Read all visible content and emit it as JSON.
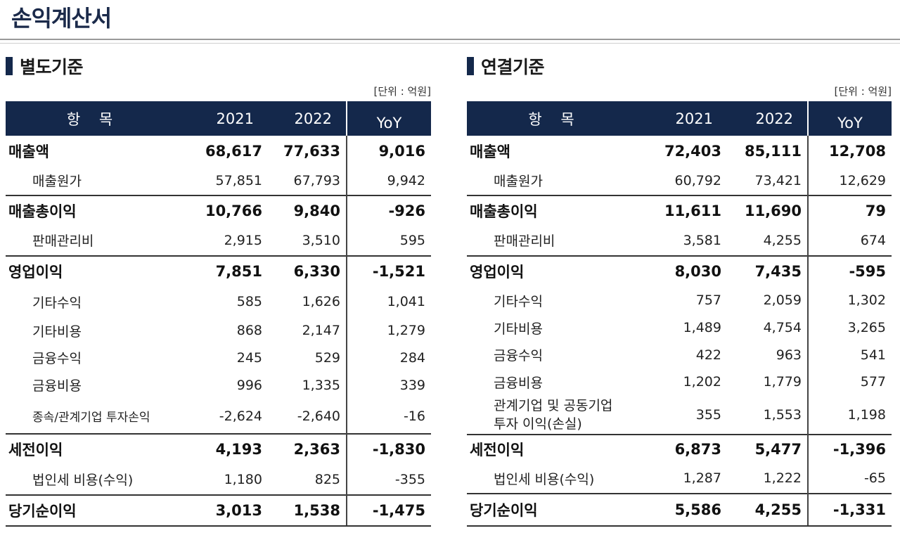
{
  "page_title": "손익계산서",
  "header": {
    "item": "항 목",
    "y2021": "2021",
    "y2022": "2022",
    "yoy": "YoY"
  },
  "standalone": {
    "title": "별도기준",
    "unit": "[단위 : 억원]",
    "rows": [
      {
        "label": "매출액",
        "v2021": "68,617",
        "v2022": "77,633",
        "yoy": "9,016"
      },
      {
        "label": "매출원가",
        "v2021": "57,851",
        "v2022": "67,793",
        "yoy": "9,942"
      },
      {
        "label": "매출총이익",
        "v2021": "10,766",
        "v2022": "9,840",
        "yoy": "-926"
      },
      {
        "label": "판매관리비",
        "v2021": "2,915",
        "v2022": "3,510",
        "yoy": "595"
      },
      {
        "label": "영업이익",
        "v2021": "7,851",
        "v2022": "6,330",
        "yoy": "-1,521"
      },
      {
        "label": "기타수익",
        "v2021": "585",
        "v2022": "1,626",
        "yoy": "1,041"
      },
      {
        "label": "기타비용",
        "v2021": "868",
        "v2022": "2,147",
        "yoy": "1,279"
      },
      {
        "label": "금융수익",
        "v2021": "245",
        "v2022": "529",
        "yoy": "284"
      },
      {
        "label": "금융비용",
        "v2021": "996",
        "v2022": "1,335",
        "yoy": "339"
      },
      {
        "label": "종속/관계기업 투자손익",
        "v2021": "-2,624",
        "v2022": "-2,640",
        "yoy": "-16"
      },
      {
        "label": "세전이익",
        "v2021": "4,193",
        "v2022": "2,363",
        "yoy": "-1,830"
      },
      {
        "label": "법인세 비용(수익)",
        "v2021": "1,180",
        "v2022": "825",
        "yoy": "-355"
      },
      {
        "label": "당기순이익",
        "v2021": "3,013",
        "v2022": "1,538",
        "yoy": "-1,475"
      }
    ]
  },
  "consolidated": {
    "title": "연결기준",
    "unit": "[단위 : 억원]",
    "rows": [
      {
        "label": "매출액",
        "v2021": "72,403",
        "v2022": "85,111",
        "yoy": "12,708"
      },
      {
        "label": "매출원가",
        "v2021": "60,792",
        "v2022": "73,421",
        "yoy": "12,629"
      },
      {
        "label": "매출총이익",
        "v2021": "11,611",
        "v2022": "11,690",
        "yoy": "79"
      },
      {
        "label": "판매관리비",
        "v2021": "3,581",
        "v2022": "4,255",
        "yoy": "674"
      },
      {
        "label": "영업이익",
        "v2021": "8,030",
        "v2022": "7,435",
        "yoy": "-595"
      },
      {
        "label": "기타수익",
        "v2021": "757",
        "v2022": "2,059",
        "yoy": "1,302"
      },
      {
        "label": "기타비용",
        "v2021": "1,489",
        "v2022": "4,754",
        "yoy": "3,265"
      },
      {
        "label": "금융수익",
        "v2021": "422",
        "v2022": "963",
        "yoy": "541"
      },
      {
        "label": "금융비용",
        "v2021": "1,202",
        "v2022": "1,779",
        "yoy": "577"
      },
      {
        "label": "관계기업 및 공동기업",
        "label2": "투자 이익(손실)",
        "v2021": "355",
        "v2022": "1,553",
        "yoy": "1,198"
      },
      {
        "label": "세전이익",
        "v2021": "6,873",
        "v2022": "5,477",
        "yoy": "-1,396"
      },
      {
        "label": "법인세 비용(수익)",
        "v2021": "1,287",
        "v2022": "1,222",
        "yoy": "-65"
      },
      {
        "label": "당기순이익",
        "v2021": "5,586",
        "v2022": "4,255",
        "yoy": "-1,331"
      }
    ]
  }
}
